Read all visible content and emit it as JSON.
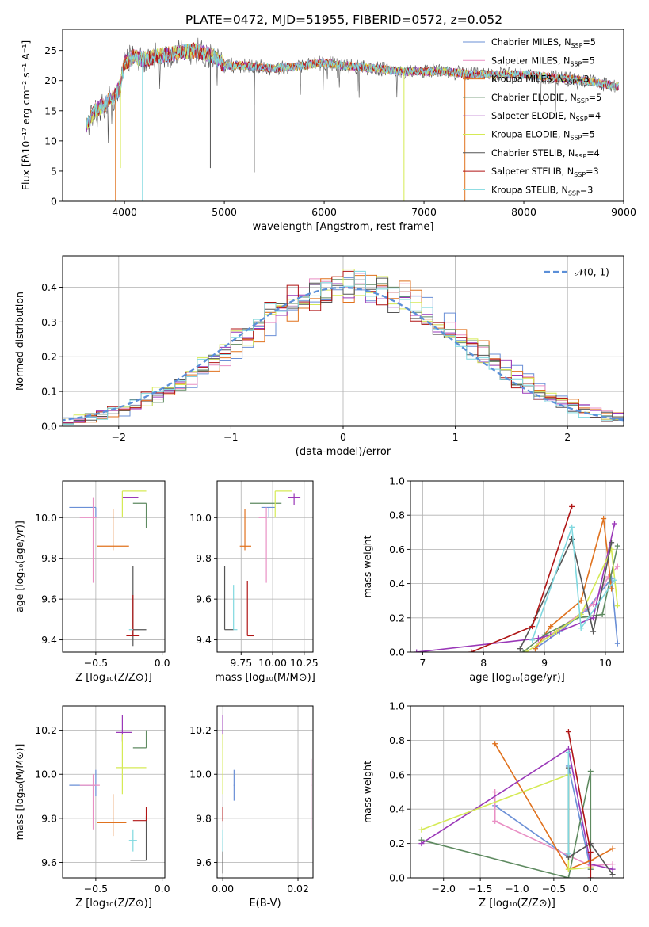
{
  "title": "PLATE=0472, MJD=51955, FIBERID=0572, z=0.052",
  "models": [
    {
      "label": "Chabrier MILES, N",
      "nssp": "=5",
      "color": "#6a8fd6"
    },
    {
      "label": "Salpeter MILES, N",
      "nssp": "=5",
      "color": "#e98fc4"
    },
    {
      "label": "Kroupa MILES, N",
      "nssp": "=3",
      "color": "#e0721e"
    },
    {
      "label": "Chabrier ELODIE, N",
      "nssp": "=5",
      "color": "#5e8a60"
    },
    {
      "label": "Salpeter ELODIE, N",
      "nssp": "=4",
      "color": "#9a38b8"
    },
    {
      "label": "Kroupa ELODIE, N",
      "nssp": "=5",
      "color": "#d5ea55"
    },
    {
      "label": "Chabrier STELIB, N",
      "nssp": "=4",
      "color": "#555555"
    },
    {
      "label": "Salpeter STELIB, N",
      "nssp": "=3",
      "color": "#b01515"
    },
    {
      "label": "Kroupa STELIB, N",
      "nssp": "=3",
      "color": "#7fd8df"
    }
  ],
  "chart_data": [
    {
      "id": "spectrum",
      "type": "line",
      "xlabel": "wavelength [Angstrom, rest frame]",
      "ylabel": "Flux [fλ10⁻¹⁷ erg cm⁻² s⁻¹ A⁻¹]",
      "xlim": [
        3380,
        9000
      ],
      "ylim": [
        0,
        28.5
      ],
      "xticks": [
        4000,
        5000,
        6000,
        7000,
        8000,
        9000
      ],
      "yticks": [
        0,
        5,
        10,
        15,
        20,
        25
      ],
      "legend": "top-right",
      "continuum": [
        [
          3620,
          12.5
        ],
        [
          3700,
          15
        ],
        [
          3800,
          16
        ],
        [
          3900,
          17.5
        ],
        [
          3960,
          19
        ],
        [
          4000,
          23
        ],
        [
          4100,
          24
        ],
        [
          4200,
          23.5
        ],
        [
          4300,
          24
        ],
        [
          4500,
          24.5
        ],
        [
          4700,
          25
        ],
        [
          4900,
          24
        ],
        [
          5000,
          22.5
        ],
        [
          5200,
          22.5
        ],
        [
          5500,
          22
        ],
        [
          5800,
          22.5
        ],
        [
          6000,
          23
        ],
        [
          6200,
          22.5
        ],
        [
          6500,
          22
        ],
        [
          6800,
          21.5
        ],
        [
          7000,
          21.5
        ],
        [
          7200,
          21.5
        ],
        [
          7500,
          21
        ],
        [
          7800,
          21
        ],
        [
          8000,
          21
        ],
        [
          8300,
          20.5
        ],
        [
          8600,
          20
        ],
        [
          8950,
          19
        ]
      ],
      "sharp_lines": [
        {
          "x": 3910,
          "ymin": 0,
          "model": 2
        },
        {
          "x": 4180,
          "ymin": 0,
          "model": 8
        },
        {
          "x": 6800,
          "ymin": 0,
          "model": 5
        },
        {
          "x": 7410,
          "ymin": 0,
          "model": 2
        },
        {
          "x": 5300,
          "ymin": 4.8,
          "model": 6
        },
        {
          "x": 4860,
          "ymin": 5.5,
          "model": 6
        },
        {
          "x": 3960,
          "ymin": 5.5,
          "model": 5
        }
      ]
    },
    {
      "id": "residuals",
      "type": "histogram",
      "xlabel": "(data-model)/error",
      "ylabel": "Normed distribution",
      "xlim": [
        -2.5,
        2.5
      ],
      "ylim": [
        0,
        0.49
      ],
      "xticks": [
        -2,
        -1,
        0,
        1,
        2
      ],
      "yticks": [
        0.0,
        0.1,
        0.2,
        0.3,
        0.4
      ],
      "grid": true,
      "legend": "top-right",
      "reference_label": "𝒩(0, 1)",
      "reference": "gaussian(0,1)",
      "bin_width": 0.1
    },
    {
      "id": "age-vs-Z",
      "type": "errorbar",
      "xlabel": "Z [log₁₀(Z/Z⊙)]",
      "ylabel": "age  [log₁₀(age/yr)]",
      "xlim": [
        -0.75,
        0.02
      ],
      "ylim": [
        9.34,
        10.18
      ],
      "xticks": [
        -0.5,
        0.0
      ],
      "yticks": [
        9.4,
        9.6,
        9.8,
        10.0
      ],
      "grid": true,
      "points": [
        {
          "model": 0,
          "x": -0.5,
          "xerr": [
            0.2,
            0.0
          ],
          "y": 10.05,
          "yerr": [
            0.05,
            0.0
          ]
        },
        {
          "model": 1,
          "x": -0.52,
          "xerr": [
            0.1,
            0.03
          ],
          "y": 10.0,
          "yerr": [
            0.32,
            0.1
          ]
        },
        {
          "model": 2,
          "x": -0.37,
          "xerr": [
            0.12,
            0.12
          ],
          "y": 9.86,
          "yerr": [
            0.02,
            0.18
          ]
        },
        {
          "model": 3,
          "x": -0.12,
          "xerr": [
            0.1,
            0.0
          ],
          "y": 10.07,
          "yerr": [
            0.12,
            0.0
          ]
        },
        {
          "model": 4,
          "x": -0.3,
          "xerr": [
            0.0,
            0.12
          ],
          "y": 10.1,
          "yerr": [
            0.0,
            0.0
          ]
        },
        {
          "model": 5,
          "x": -0.3,
          "xerr": [
            0.0,
            0.18
          ],
          "y": 10.13,
          "yerr": [
            0.13,
            0.0
          ]
        },
        {
          "model": 6,
          "x": -0.22,
          "xerr": [
            0.0,
            0.1
          ],
          "y": 9.45,
          "yerr": [
            0.08,
            0.31
          ]
        },
        {
          "model": 7,
          "x": -0.22,
          "xerr": [
            0.05,
            0.05
          ],
          "y": 9.42,
          "yerr": [
            0.0,
            0.2
          ]
        },
        {
          "model": 8,
          "x": -0.22,
          "xerr": [
            0.03,
            0.0
          ],
          "y": 9.45,
          "yerr": [
            0.0,
            0.0
          ]
        }
      ]
    },
    {
      "id": "age-vs-mass",
      "type": "errorbar",
      "xlabel": "mass [log₁₀(M/M⊙)]",
      "ylabel": "",
      "xlim": [
        9.56,
        10.32
      ],
      "ylim": [
        9.34,
        10.18
      ],
      "xticks": [
        9.75,
        10.0,
        10.25
      ],
      "xticklabels": [
        "9.75",
        "10.00",
        "10.25"
      ],
      "yticks": [
        9.4,
        9.6,
        9.8,
        10.0
      ],
      "grid": true,
      "points": [
        {
          "model": 0,
          "x": 9.97,
          "xerr": [
            0.06,
            0.05
          ],
          "y": 10.05,
          "yerr": [
            0.05,
            0.0
          ]
        },
        {
          "model": 1,
          "x": 9.95,
          "xerr": [
            0.06,
            0.0
          ],
          "y": 10.0,
          "yerr": [
            0.32,
            0.05
          ]
        },
        {
          "model": 2,
          "x": 9.78,
          "xerr": [
            0.04,
            0.05
          ],
          "y": 9.86,
          "yerr": [
            0.02,
            0.18
          ]
        },
        {
          "model": 3,
          "x": 10.07,
          "xerr": [
            0.25,
            0.0
          ],
          "y": 10.07,
          "yerr": [
            0.0,
            0.0
          ]
        },
        {
          "model": 4,
          "x": 10.17,
          "xerr": [
            0.05,
            0.05
          ],
          "y": 10.1,
          "yerr": [
            0.04,
            0.02
          ]
        },
        {
          "model": 5,
          "x": 10.02,
          "xerr": [
            0.0,
            0.13
          ],
          "y": 10.13,
          "yerr": [
            0.13,
            0.0
          ]
        },
        {
          "model": 6,
          "x": 9.62,
          "xerr": [
            0.0,
            0.07
          ],
          "y": 9.45,
          "yerr": [
            0.0,
            0.31
          ]
        },
        {
          "model": 7,
          "x": 9.8,
          "xerr": [
            0.0,
            0.05
          ],
          "y": 9.42,
          "yerr": [
            0.0,
            0.27
          ]
        },
        {
          "model": 8,
          "x": 9.69,
          "xerr": [
            0.0,
            0.03
          ],
          "y": 9.45,
          "yerr": [
            0.0,
            0.22
          ]
        }
      ]
    },
    {
      "id": "weight-vs-age",
      "type": "line",
      "xlabel": "age  [log₁₀(age/yr)]",
      "ylabel": "mass weight",
      "xlim": [
        6.8,
        10.3
      ],
      "ylim": [
        0,
        1.0
      ],
      "xticks": [
        7,
        8,
        9,
        10
      ],
      "yticks": [
        0.0,
        0.2,
        0.4,
        0.6,
        0.8,
        1.0
      ],
      "grid": true,
      "series": [
        {
          "model": 0,
          "x": [
            8.85,
            9.25,
            9.7,
            10.1,
            10.2
          ],
          "y": [
            0.02,
            0.12,
            0.25,
            0.43,
            0.05
          ]
        },
        {
          "model": 1,
          "x": [
            8.9,
            9.3,
            9.8,
            10.05,
            10.2
          ],
          "y": [
            0.05,
            0.15,
            0.28,
            0.44,
            0.5
          ]
        },
        {
          "model": 2,
          "x": [
            8.85,
            9.1,
            9.6,
            9.97,
            10.1
          ],
          "y": [
            0.02,
            0.15,
            0.3,
            0.78,
            0.37
          ]
        },
        {
          "model": 3,
          "x": [
            8.65,
            9.0,
            9.55,
            9.95,
            10.2
          ],
          "y": [
            0.0,
            0.1,
            0.2,
            0.22,
            0.62
          ]
        },
        {
          "model": 4,
          "x": [
            6.9,
            8.9,
            9.1,
            9.8,
            10.15
          ],
          "y": [
            0.0,
            0.08,
            0.1,
            0.2,
            0.75
          ]
        },
        {
          "model": 5,
          "x": [
            8.7,
            9.2,
            9.6,
            10.1,
            10.2
          ],
          "y": [
            0.0,
            0.12,
            0.22,
            0.6,
            0.27
          ]
        },
        {
          "model": 6,
          "x": [
            8.6,
            8.85,
            9.45,
            9.8,
            10.1
          ],
          "y": [
            0.02,
            0.2,
            0.66,
            0.12,
            0.64
          ]
        },
        {
          "model": 7,
          "x": [
            7.8,
            8.8,
            9.45
          ],
          "y": [
            0.0,
            0.15,
            0.85
          ]
        },
        {
          "model": 8,
          "x": [
            8.8,
            9.45,
            9.6,
            10.15
          ],
          "y": [
            0.07,
            0.73,
            0.14,
            0.42
          ]
        }
      ]
    },
    {
      "id": "mass-vs-Z",
      "type": "errorbar",
      "xlabel": "Z [log₁₀(Z/Z⊙)]",
      "ylabel": "mass [log₁₀(M/M⊙)]",
      "xlim": [
        -0.75,
        0.02
      ],
      "ylim": [
        9.53,
        10.31
      ],
      "xticks": [
        -0.5,
        0.0
      ],
      "yticks": [
        9.6,
        9.8,
        10.0,
        10.2
      ],
      "grid": true,
      "points": [
        {
          "model": 0,
          "x": -0.5,
          "xerr": [
            0.2,
            0.0
          ],
          "y": 9.95,
          "yerr": [
            0.05,
            0.07
          ]
        },
        {
          "model": 1,
          "x": -0.52,
          "xerr": [
            0.1,
            0.05
          ],
          "y": 9.95,
          "yerr": [
            0.2,
            0.05
          ]
        },
        {
          "model": 2,
          "x": -0.37,
          "xerr": [
            0.12,
            0.1
          ],
          "y": 9.78,
          "yerr": [
            0.06,
            0.13
          ]
        },
        {
          "model": 3,
          "x": -0.12,
          "xerr": [
            0.1,
            0.0
          ],
          "y": 10.12,
          "yerr": [
            0.0,
            0.08
          ]
        },
        {
          "model": 4,
          "x": -0.3,
          "xerr": [
            0.05,
            0.07
          ],
          "y": 10.19,
          "yerr": [
            0.04,
            0.08
          ]
        },
        {
          "model": 5,
          "x": -0.3,
          "xerr": [
            0.05,
            0.18
          ],
          "y": 10.03,
          "yerr": [
            0.12,
            0.15
          ]
        },
        {
          "model": 6,
          "x": -0.12,
          "xerr": [
            0.12,
            0.0
          ],
          "y": 9.61,
          "yerr": [
            0.0,
            0.2
          ]
        },
        {
          "model": 7,
          "x": -0.12,
          "xerr": [
            0.1,
            0.0
          ],
          "y": 9.79,
          "yerr": [
            0.0,
            0.06
          ]
        },
        {
          "model": 8,
          "x": -0.22,
          "xerr": [
            0.03,
            0.03
          ],
          "y": 9.7,
          "yerr": [
            0.05,
            0.05
          ]
        }
      ]
    },
    {
      "id": "mass-vs-ebv",
      "type": "errorbar",
      "xlabel": "E(B-V)",
      "ylabel": "",
      "xlim": [
        -0.0015,
        0.024
      ],
      "ylim": [
        9.53,
        10.31
      ],
      "xticks": [
        0.0,
        0.02
      ],
      "xticklabels": [
        "0.00",
        "0.02"
      ],
      "yticks": [
        9.6,
        9.8,
        10.0,
        10.2
      ],
      "grid": true,
      "points": [
        {
          "model": 0,
          "x": 0.003,
          "xerr": [
            0,
            0
          ],
          "y": 9.95,
          "yerr": [
            0.07,
            0.07
          ]
        },
        {
          "model": 1,
          "x": 0.0235,
          "xerr": [
            0,
            0
          ],
          "y": 9.95,
          "yerr": [
            0.2,
            0.12
          ]
        },
        {
          "model": 3,
          "x": 0.0,
          "xerr": [
            0,
            0
          ],
          "y": 10.12,
          "yerr": [
            0.0,
            0.08
          ]
        },
        {
          "model": 4,
          "x": 0.0,
          "xerr": [
            0,
            0
          ],
          "y": 10.19,
          "yerr": [
            0.04,
            0.08
          ]
        },
        {
          "model": 5,
          "x": 0.0,
          "xerr": [
            0,
            0
          ],
          "y": 10.03,
          "yerr": [
            0.12,
            0.15
          ]
        },
        {
          "model": 6,
          "x": 0.0,
          "xerr": [
            0,
            0
          ],
          "y": 9.61,
          "yerr": [
            0.06,
            0.1
          ]
        },
        {
          "model": 7,
          "x": 0.0,
          "xerr": [
            0,
            0
          ],
          "y": 9.79,
          "yerr": [
            0.0,
            0.06
          ]
        },
        {
          "model": 8,
          "x": 0.0,
          "xerr": [
            0,
            0
          ],
          "y": 9.7,
          "yerr": [
            0.05,
            0.05
          ]
        }
      ]
    },
    {
      "id": "weight-vs-Z",
      "type": "line",
      "xlabel": "Z [log₁₀(Z/Z⊙)]",
      "ylabel": "mass weight",
      "xlim": [
        -2.45,
        0.45
      ],
      "ylim": [
        0,
        1.0
      ],
      "xticks": [
        -2.0,
        -1.5,
        -1.0,
        -0.5,
        0.0
      ],
      "xticklabels": [
        "−2.0",
        "−1.5",
        "−1.0",
        "−0.5",
        "0.0"
      ],
      "yticks": [
        0.0,
        0.2,
        0.4,
        0.6,
        0.8,
        1.0
      ],
      "grid": true,
      "series": [
        {
          "model": 0,
          "x": [
            -1.3,
            -0.3,
            -0.3,
            0.0
          ],
          "y": [
            0.42,
            0.12,
            0.65,
            0.05
          ]
        },
        {
          "model": 1,
          "x": [
            -1.3,
            -1.3,
            0.0,
            0.3
          ],
          "y": [
            0.5,
            0.33,
            0.07,
            0.08
          ]
        },
        {
          "model": 2,
          "x": [
            -1.3,
            -0.3,
            0.0,
            0.3
          ],
          "y": [
            0.78,
            0.05,
            0.1,
            0.17
          ]
        },
        {
          "model": 3,
          "x": [
            -2.3,
            -0.3,
            0.0,
            0.0
          ],
          "y": [
            0.22,
            0.0,
            0.62,
            0.05
          ]
        },
        {
          "model": 4,
          "x": [
            -2.3,
            -0.3,
            0.0,
            0.3
          ],
          "y": [
            0.2,
            0.75,
            0.08,
            0.05
          ]
        },
        {
          "model": 5,
          "x": [
            -2.3,
            -0.3,
            -0.3,
            0.0
          ],
          "y": [
            0.28,
            0.6,
            0.05,
            0.06
          ]
        },
        {
          "model": 6,
          "x": [
            -0.3,
            -0.3,
            0.0,
            0.3
          ],
          "y": [
            0.64,
            0.12,
            0.2,
            0.02
          ]
        },
        {
          "model": 7,
          "x": [
            -0.3,
            0.0,
            0.0
          ],
          "y": [
            0.85,
            0.15,
            0.0
          ]
        },
        {
          "model": 8,
          "x": [
            -0.3,
            -0.3
          ],
          "y": [
            0.73,
            0.14
          ]
        }
      ]
    }
  ]
}
